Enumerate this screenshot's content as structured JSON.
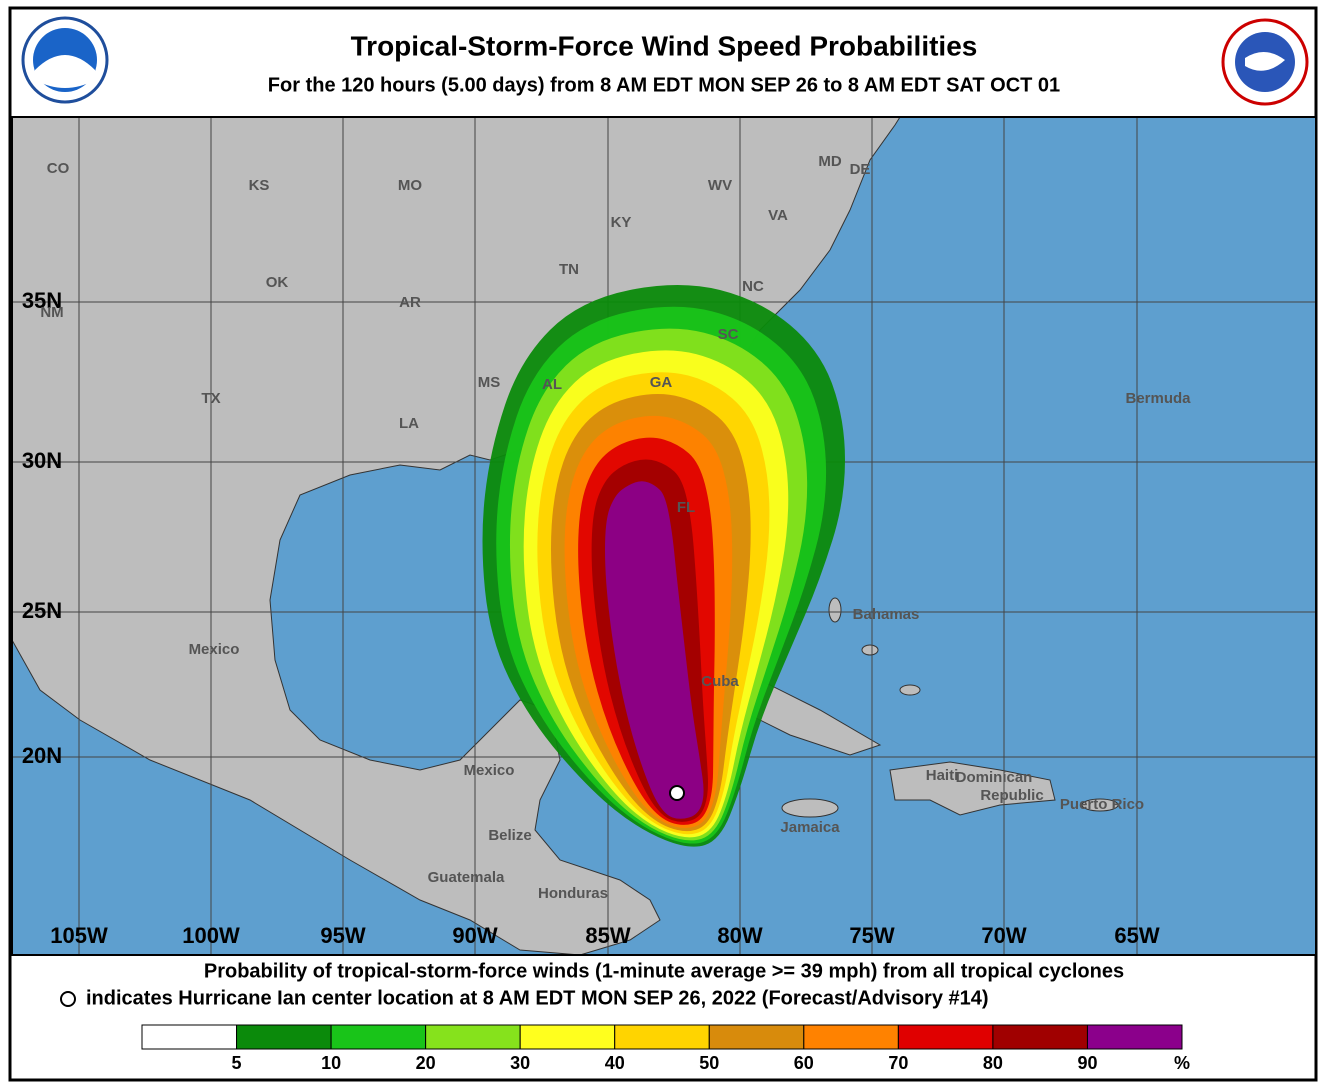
{
  "header": {
    "title": "Tropical-Storm-Force Wind Speed Probabilities",
    "subtitle": "For the 120 hours (5.00 days) from 8 AM EDT MON SEP 26 to 8 AM EDT SAT OCT 01"
  },
  "map": {
    "lat_labels": [
      "35N",
      "30N",
      "25N",
      "20N"
    ],
    "lon_labels": [
      "105W",
      "100W",
      "95W",
      "90W",
      "85W",
      "80W",
      "75W",
      "70W",
      "65W"
    ],
    "places": [
      "CO",
      "KS",
      "MO",
      "KY",
      "WV",
      "VA",
      "MD",
      "DE",
      "TN",
      "NC",
      "OK",
      "AR",
      "SC",
      "NM",
      "MS",
      "AL",
      "GA",
      "TX",
      "LA",
      "FL",
      "Bermuda",
      "Bahamas",
      "Mexico",
      "Cuba",
      "Mexico",
      "Haiti",
      "Dominican",
      "Republic",
      "Puerto Rico",
      "Jamaica",
      "Belize",
      "Guatemala",
      "Honduras"
    ]
  },
  "footer": {
    "line1": "Probability of tropical-storm-force winds (1-minute average >= 39 mph) from all tropical cyclones",
    "line2": "indicates Hurricane Ian center location at 8 AM EDT MON SEP 26, 2022 (Forecast/Advisory #14)"
  },
  "legend": {
    "colors": [
      "#ffffff",
      "#0b8a0b",
      "#19c419",
      "#86e21c",
      "#ffff1e",
      "#ffd400",
      "#d88b0c",
      "#ff8200",
      "#e00000",
      "#a00000",
      "#8b008b"
    ],
    "ticks": [
      "5",
      "10",
      "20",
      "30",
      "40",
      "50",
      "60",
      "70",
      "80",
      "90"
    ],
    "unit": "%"
  }
}
